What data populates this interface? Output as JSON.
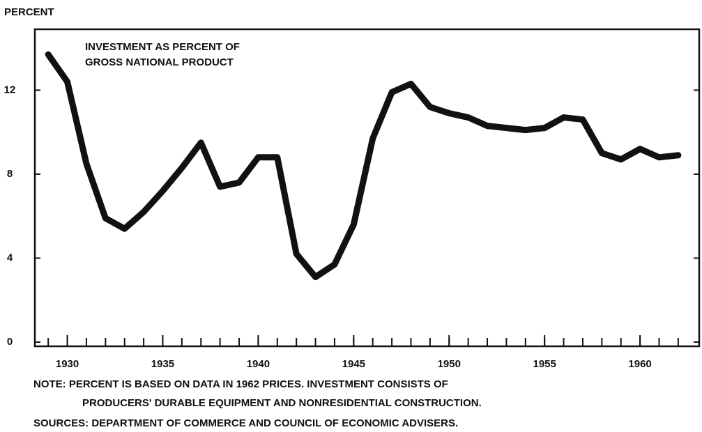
{
  "chart_data": {
    "type": "line",
    "y_label": "PERCENT",
    "title": [
      "INVESTMENT AS PERCENT OF",
      "GROSS NATIONAL PRODUCT"
    ],
    "notes": [
      "NOTE:  PERCENT IS BASED ON DATA IN 1962 PRICES.  INVESTMENT CONSISTS OF",
      "PRODUCERS' DURABLE EQUIPMENT AND NONRESIDENTIAL CONSTRUCTION."
    ],
    "sources": "SOURCES:  DEPARTMENT OF COMMERCE AND COUNCIL OF ECONOMIC ADVISERS.",
    "x": [
      1929,
      1930,
      1931,
      1932,
      1933,
      1934,
      1935,
      1936,
      1937,
      1938,
      1939,
      1940,
      1941,
      1942,
      1943,
      1944,
      1945,
      1946,
      1947,
      1948,
      1949,
      1950,
      1951,
      1952,
      1953,
      1954,
      1955,
      1956,
      1957,
      1958,
      1959,
      1960,
      1961,
      1962
    ],
    "series": [
      {
        "color": "#111111",
        "values": [
          13.7,
          12.4,
          8.5,
          5.9,
          5.4,
          6.2,
          7.2,
          8.3,
          9.5,
          7.4,
          7.6,
          8.8,
          8.8,
          4.2,
          3.1,
          3.7,
          5.6,
          9.7,
          11.9,
          12.3,
          11.2,
          10.9,
          10.7,
          10.3,
          10.2,
          10.1,
          10.2,
          10.7,
          10.6,
          9.0,
          8.7,
          9.2,
          8.8,
          8.9
        ]
      }
    ],
    "xlim": [
      1928.3,
      1963.1
    ],
    "xticks": [
      1930,
      1935,
      1940,
      1945,
      1950,
      1955,
      1960
    ],
    "xminorticks": [
      1929,
      1930,
      1931,
      1932,
      1933,
      1934,
      1935,
      1936,
      1937,
      1938,
      1939,
      1940,
      1941,
      1942,
      1943,
      1944,
      1945,
      1946,
      1947,
      1948,
      1949,
      1950,
      1951,
      1952,
      1953,
      1954,
      1955,
      1956,
      1957,
      1958,
      1959,
      1960,
      1961,
      1962
    ],
    "ylim": [
      -0.2,
      14.9
    ],
    "yticks": [
      0,
      4,
      8,
      12
    ]
  }
}
